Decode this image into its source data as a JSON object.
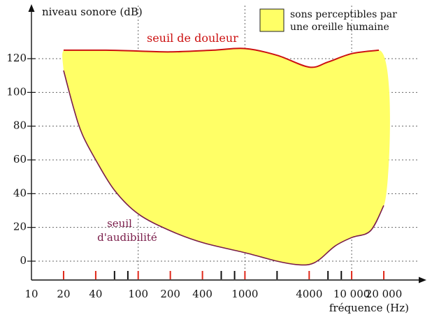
{
  "chart_data": {
    "type": "area",
    "ylabel": "niveau sonore (dB)",
    "xlabel": "fréquence (Hz)",
    "x_scale": "log",
    "xlim": [
      10,
      40000
    ],
    "ylim": [
      -10,
      140
    ],
    "y_ticks": [
      0,
      20,
      40,
      60,
      80,
      100,
      120
    ],
    "x_tick_labels": [
      {
        "value": 10,
        "label": "10"
      },
      {
        "value": 20,
        "label": "20"
      },
      {
        "value": 40,
        "label": "40"
      },
      {
        "value": 100,
        "label": "100"
      },
      {
        "value": 200,
        "label": "200"
      },
      {
        "value": 400,
        "label": "400"
      },
      {
        "value": 1000,
        "label": "1000"
      },
      {
        "value": 4000,
        "label": "4000"
      },
      {
        "value": 10000,
        "label": "10 000"
      },
      {
        "value": 20000,
        "label": "20 000"
      }
    ],
    "red_ticks": [
      20,
      40,
      100,
      200,
      400,
      1000,
      4000,
      10000,
      20000
    ],
    "black_ticks": [
      60,
      80,
      600,
      800,
      2000,
      6000,
      8000
    ],
    "grid_x": [
      100,
      1000,
      10000
    ],
    "grid": true,
    "legend": {
      "label": "sons perceptibles par une oreille humaine",
      "color": "#ffff66",
      "placement": "top-right"
    },
    "fill_color": "#ffff66",
    "pain_color": "#cc1111",
    "audibility_color": "#7a1d4a",
    "series": [
      {
        "name": "seuil de douleur",
        "x": [
          20,
          50,
          100,
          200,
          500,
          1000,
          2000,
          4000,
          6000,
          10000,
          18000
        ],
        "y": [
          125,
          125,
          124.5,
          124,
          125,
          126,
          122,
          115,
          118,
          123,
          125
        ]
      },
      {
        "name": "seuil d'audibilité",
        "x": [
          20,
          25,
          30,
          40,
          60,
          100,
          200,
          400,
          1000,
          2000,
          3000,
          4000,
          5000,
          7000,
          10000,
          15000,
          20000
        ],
        "y": [
          113,
          90,
          75,
          60,
          42,
          28,
          18,
          11,
          5,
          0,
          -2,
          -2,
          1,
          9,
          14,
          18,
          33
        ]
      }
    ],
    "annotations": {
      "pain": "seuil de douleur",
      "audibility_line1": "seuil",
      "audibility_line2": "d'audibilité"
    }
  }
}
